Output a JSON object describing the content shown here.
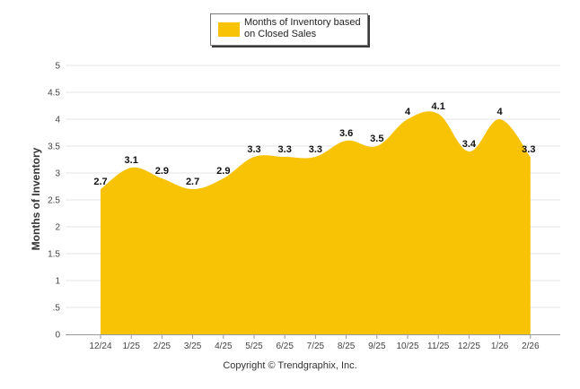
{
  "colors": {
    "fill": "#F7C304",
    "grid": "#e6e6e6",
    "axis": "#9a9a9a"
  },
  "legend": {
    "label": "Months of Inventory based on Closed Sales"
  },
  "copyright": "Copyright © Trendgraphix, Inc.",
  "chart_data": {
    "type": "area",
    "title": "",
    "xlabel": "",
    "ylabel": "Months of Inventory",
    "ylim": [
      0,
      5
    ],
    "ytick_labels": [
      "0",
      ".5",
      "1",
      "1.5",
      "2",
      "2.5",
      "3",
      "3.5",
      "4",
      "4.5",
      "5"
    ],
    "categories": [
      "12/24",
      "1/25",
      "2/25",
      "3/25",
      "4/25",
      "5/25",
      "6/25",
      "7/25",
      "8/25",
      "9/25",
      "10/25",
      "11/25",
      "12/25",
      "1/26",
      "2/26"
    ],
    "series": [
      {
        "name": "Months of Inventory based on Closed Sales",
        "values": [
          2.7,
          3.1,
          2.9,
          2.7,
          2.9,
          3.3,
          3.3,
          3.3,
          3.6,
          3.5,
          4,
          4.1,
          3.4,
          4,
          3.3
        ]
      }
    ]
  }
}
